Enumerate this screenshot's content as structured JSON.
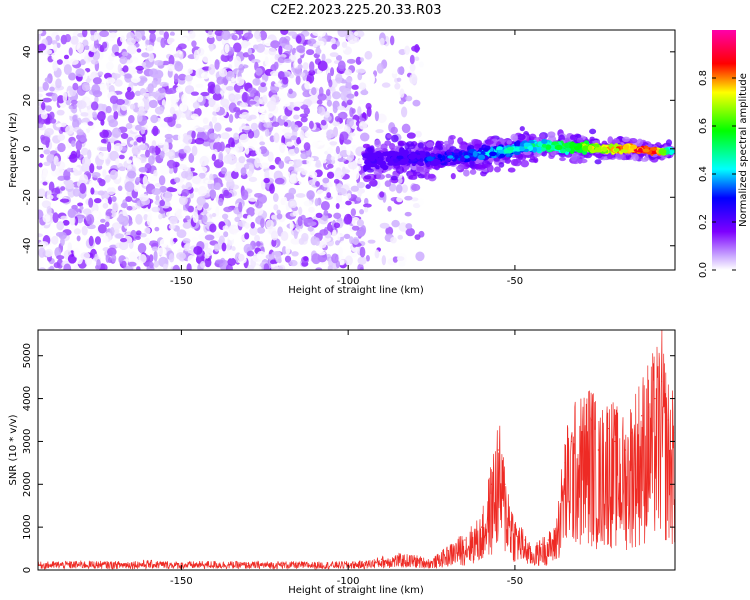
{
  "page_title": "C2E2.2023.225.20.33.R03",
  "colors": {
    "snr_line": "#ee2a24",
    "spectrum_noise": "#8a1cff",
    "background": "#ffffff"
  },
  "chart_data": [
    {
      "type": "heatmap",
      "title": "C2E2.2023.225.20.33.R03",
      "xlabel": "Height of straight line (km)",
      "ylabel": "Frequency (Hz)",
      "xlim": [
        -193,
        -2
      ],
      "ylim": [
        -50,
        49
      ],
      "xticks": [
        -150,
        -100,
        -50
      ],
      "yticks": [
        -40,
        -20,
        0,
        20,
        40
      ],
      "colorbar": {
        "label": "Normalized spectral amplitude",
        "range": [
          0,
          1
        ],
        "ticks": [
          0.0,
          0.2,
          0.4,
          0.6,
          0.8
        ],
        "tick_labels": [
          "0.0",
          "0.2",
          "0.4",
          "0.6",
          "0.8"
        ],
        "colormap": "rainbow (white-purple-blue-cyan-green-yellow-red-magenta)"
      },
      "noise_region": {
        "x_range": [
          -193,
          -78
        ],
        "y_range": [
          -50,
          49
        ],
        "amplitude": [
          0.0,
          0.15
        ]
      },
      "ridge": [
        {
          "x": -95,
          "y": -5,
          "amplitude": 0.25
        },
        {
          "x": -85,
          "y": -4,
          "amplitude": 0.3
        },
        {
          "x": -75,
          "y": -4,
          "amplitude": 0.35
        },
        {
          "x": -65,
          "y": -3,
          "amplitude": 0.42
        },
        {
          "x": -55,
          "y": -1,
          "amplitude": 0.5
        },
        {
          "x": -45,
          "y": 1,
          "amplitude": 0.55
        },
        {
          "x": -35,
          "y": 1,
          "amplitude": 0.65
        },
        {
          "x": -25,
          "y": 0,
          "amplitude": 0.8
        },
        {
          "x": -15,
          "y": 0,
          "amplitude": 0.9
        },
        {
          "x": -8,
          "y": -1,
          "amplitude": 0.97
        },
        {
          "x": -3,
          "y": -1,
          "amplitude": 0.5
        }
      ]
    },
    {
      "type": "line",
      "xlabel": "Height of straight line (km)",
      "ylabel": "SNR (10 * v/v)",
      "xlim": [
        -193,
        -2
      ],
      "ylim": [
        0,
        5600
      ],
      "xticks": [
        -150,
        -100,
        -50
      ],
      "yticks": [
        0,
        1000,
        2000,
        3000,
        4000,
        5000
      ],
      "series": [
        {
          "x": [
            -193,
            -180,
            -170,
            -160,
            -150,
            -140,
            -130,
            -120,
            -110,
            -100,
            -95,
            -90,
            -85,
            -80,
            -75,
            -70,
            -65,
            -60,
            -57,
            -55,
            -53,
            -50,
            -47,
            -45,
            -42,
            -40,
            -38,
            -35,
            -33,
            -30,
            -27,
            -25,
            -22,
            -20,
            -17,
            -15,
            -12,
            -10,
            -8,
            -6,
            -4,
            -2
          ],
          "y": [
            150,
            170,
            160,
            180,
            150,
            170,
            150,
            160,
            150,
            160,
            170,
            250,
            300,
            280,
            200,
            450,
            700,
            1000,
            2000,
            2800,
            2000,
            1000,
            700,
            400,
            600,
            700,
            800,
            2500,
            3000,
            3200,
            3500,
            2800,
            3300,
            3000,
            2800,
            3200,
            3600,
            3800,
            4000,
            4400,
            3500,
            3200
          ]
        }
      ]
    }
  ]
}
